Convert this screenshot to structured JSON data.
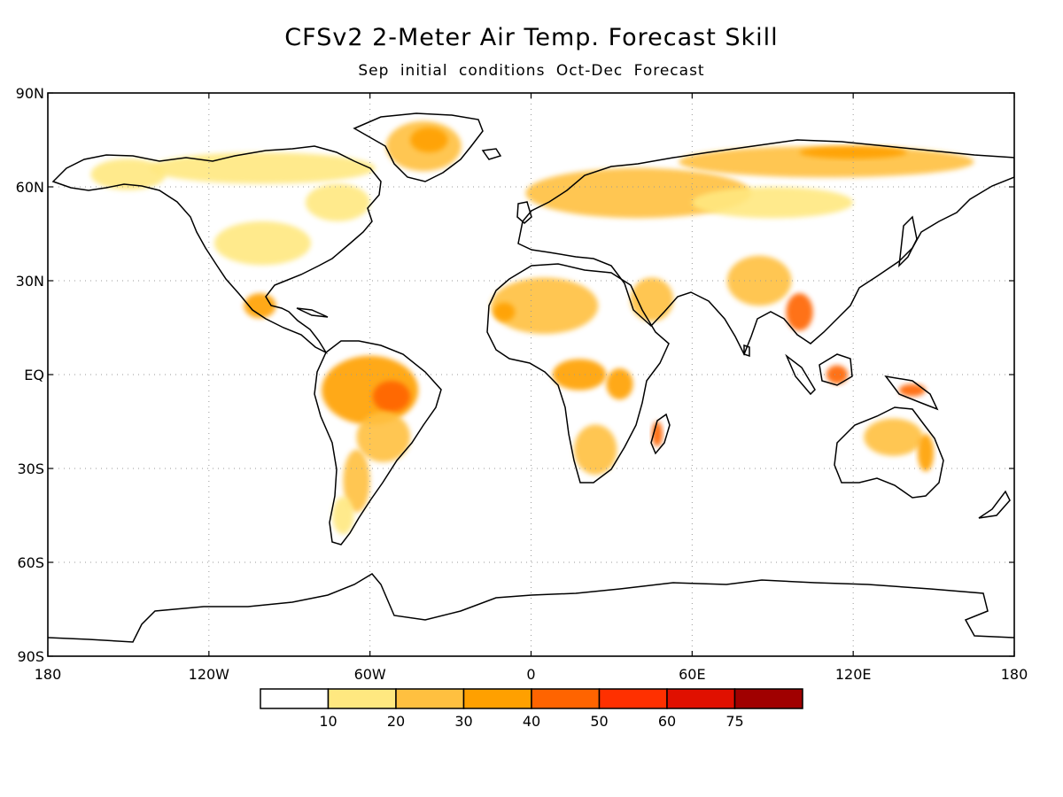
{
  "title": "CFSv2 2-Meter Air Temp. Forecast Skill",
  "subtitle": "Sep initial conditions  Oct-Dec Forecast",
  "map": {
    "projection": "equirectangular",
    "lon_range": [
      -180,
      180
    ],
    "lat_range": [
      -90,
      90
    ],
    "grid": true,
    "lat_ticks": [
      {
        "lat": 90,
        "label": "90N"
      },
      {
        "lat": 60,
        "label": "60N"
      },
      {
        "lat": 30,
        "label": "30N"
      },
      {
        "lat": 0,
        "label": "EQ"
      },
      {
        "lat": -30,
        "label": "30S"
      },
      {
        "lat": -60,
        "label": "60S"
      },
      {
        "lat": -90,
        "label": "90S"
      }
    ],
    "lon_ticks": [
      {
        "lon": -180,
        "label": "180"
      },
      {
        "lon": -120,
        "label": "120W"
      },
      {
        "lon": -60,
        "label": "60W"
      },
      {
        "lon": 0,
        "label": "0"
      },
      {
        "lon": 60,
        "label": "60E"
      },
      {
        "lon": 120,
        "label": "120E"
      },
      {
        "lon": 180,
        "label": "180"
      }
    ]
  },
  "colorbar": {
    "bins": [
      {
        "color": "#ffffff"
      },
      {
        "color": "#ffe880"
      },
      {
        "color": "#ffc040"
      },
      {
        "color": "#ffa000"
      },
      {
        "color": "#ff6400"
      },
      {
        "color": "#ff3000"
      },
      {
        "color": "#e01000"
      },
      {
        "color": "#a00000"
      }
    ],
    "labels": [
      "10",
      "20",
      "30",
      "40",
      "50",
      "60",
      "75"
    ]
  },
  "skill_regions": [
    {
      "name": "greenland",
      "level": 2,
      "lon": -40,
      "lat": 73,
      "rx": 14,
      "ry": 8
    },
    {
      "name": "greenland-core",
      "level": 3,
      "lon": -38,
      "lat": 75,
      "rx": 7,
      "ry": 4
    },
    {
      "name": "canada-north",
      "level": 1,
      "lon": -100,
      "lat": 66,
      "rx": 42,
      "ry": 5
    },
    {
      "name": "alaska",
      "level": 1,
      "lon": -150,
      "lat": 64,
      "rx": 14,
      "ry": 5
    },
    {
      "name": "canada-east",
      "level": 1,
      "lon": -72,
      "lat": 55,
      "rx": 12,
      "ry": 6
    },
    {
      "name": "usa-central",
      "level": 1,
      "lon": -100,
      "lat": 42,
      "rx": 18,
      "ry": 7
    },
    {
      "name": "mexico",
      "level": 3,
      "lon": -101,
      "lat": 22,
      "rx": 6,
      "ry": 4
    },
    {
      "name": "amazon",
      "level": 3,
      "lon": -60,
      "lat": -5,
      "rx": 18,
      "ry": 11
    },
    {
      "name": "amazon-core",
      "level": 4,
      "lon": -52,
      "lat": -7,
      "rx": 7,
      "ry": 5
    },
    {
      "name": "brazil-south",
      "level": 2,
      "lon": -55,
      "lat": -20,
      "rx": 10,
      "ry": 8
    },
    {
      "name": "argentina",
      "level": 2,
      "lon": -65,
      "lat": -34,
      "rx": 5,
      "ry": 10
    },
    {
      "name": "patagonia",
      "level": 1,
      "lon": -70,
      "lat": -45,
      "rx": 4,
      "ry": 6
    },
    {
      "name": "europe-russia",
      "level": 2,
      "lon": 40,
      "lat": 58,
      "rx": 42,
      "ry": 8
    },
    {
      "name": "siberia-north",
      "level": 2,
      "lon": 110,
      "lat": 68,
      "rx": 55,
      "ry": 5
    },
    {
      "name": "siberia-east",
      "level": 3,
      "lon": 120,
      "lat": 71,
      "rx": 20,
      "ry": 2
    },
    {
      "name": "asia-central",
      "level": 1,
      "lon": 90,
      "lat": 55,
      "rx": 30,
      "ry": 5
    },
    {
      "name": "sahara",
      "level": 2,
      "lon": 5,
      "lat": 22,
      "rx": 20,
      "ry": 9
    },
    {
      "name": "west-sahara",
      "level": 3,
      "lon": -10,
      "lat": 20,
      "rx": 4,
      "ry": 3
    },
    {
      "name": "arabia",
      "level": 2,
      "lon": 45,
      "lat": 24,
      "rx": 8,
      "ry": 7
    },
    {
      "name": "congo",
      "level": 3,
      "lon": 18,
      "lat": 0,
      "rx": 10,
      "ry": 5
    },
    {
      "name": "east-africa",
      "level": 3,
      "lon": 33,
      "lat": -3,
      "rx": 5,
      "ry": 5
    },
    {
      "name": "southern-africa",
      "level": 2,
      "lon": 24,
      "lat": -24,
      "rx": 8,
      "ry": 8
    },
    {
      "name": "madagascar",
      "level": 4,
      "lon": 47,
      "lat": -19,
      "rx": 2,
      "ry": 4
    },
    {
      "name": "india-tibet",
      "level": 2,
      "lon": 85,
      "lat": 30,
      "rx": 12,
      "ry": 8
    },
    {
      "name": "indochina",
      "level": 4,
      "lon": 100,
      "lat": 20,
      "rx": 5,
      "ry": 6
    },
    {
      "name": "borneo",
      "level": 4,
      "lon": 114,
      "lat": 0,
      "rx": 4,
      "ry": 3
    },
    {
      "name": "new-guinea",
      "level": 4,
      "lon": 142,
      "lat": -5,
      "rx": 5,
      "ry": 2
    },
    {
      "name": "australia-north",
      "level": 2,
      "lon": 135,
      "lat": -20,
      "rx": 11,
      "ry": 6
    },
    {
      "name": "australia-east",
      "level": 3,
      "lon": 147,
      "lat": -25,
      "rx": 3,
      "ry": 6
    }
  ]
}
